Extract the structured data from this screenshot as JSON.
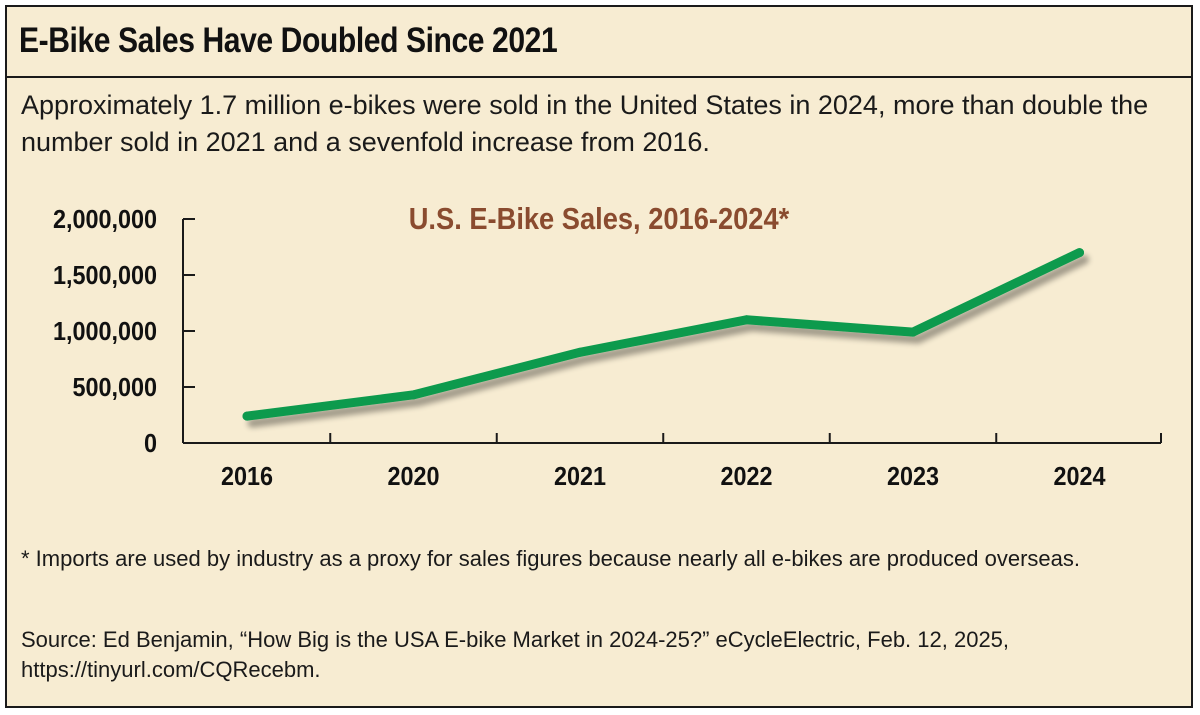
{
  "headline": "E-Bike Sales Have Doubled Since 2021",
  "subhead": "Approximately 1.7 million e-bikes were sold in the United States in 2024, more than double the number sold in 2021 and a sevenfold increase from 2016.",
  "footnote": "* Imports are used by industry as a proxy for sales figures because nearly all e-bikes are produced overseas.",
  "source": "Source: Ed Benjamin, “How Big is the USA E-bike Market in 2024-25?” eCycleElectric, Feb. 12, 2025, https://tinyurl.com/CQRecebm.",
  "colors": {
    "background": "#f7ecd2",
    "line": "#0e9a4e",
    "chart_title": "#8a4b2f",
    "axis": "#1a1a1a"
  },
  "chart_data": {
    "type": "line",
    "title": "U.S. E-Bike Sales, 2016-2024*",
    "xlabel": "",
    "ylabel": "",
    "categories": [
      "2016",
      "2020",
      "2021",
      "2022",
      "2023",
      "2024"
    ],
    "series": [
      {
        "name": "U.S. E-Bike Sales",
        "values": [
          240000,
          430000,
          810000,
          1100000,
          990000,
          1700000
        ]
      }
    ],
    "ylim": [
      0,
      2000000
    ],
    "yticks": [
      0,
      500000,
      1000000,
      1500000,
      2000000
    ],
    "ytick_labels": [
      "0",
      "500,000",
      "1,000,000",
      "1,500,000",
      "2,000,000"
    ],
    "grid": false,
    "legend": "none"
  }
}
